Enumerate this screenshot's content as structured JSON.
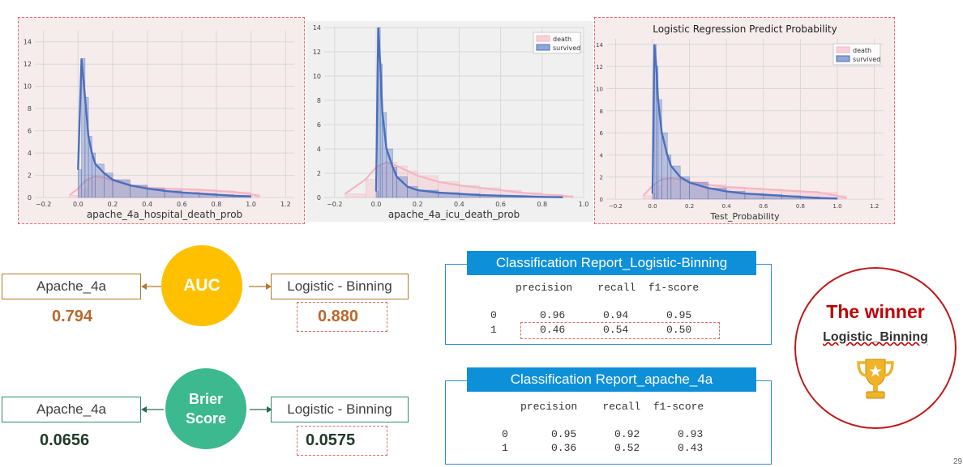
{
  "page_number": "29",
  "charts": [
    {
      "xlabel": "apache_4a_hospital_death_prob",
      "title": "",
      "xticks": [
        "−0.2",
        "0.0",
        "0.2",
        "0.4",
        "0.6",
        "0.8",
        "1.0",
        "1.2"
      ],
      "yticks": [
        "0",
        "2",
        "4",
        "6",
        "8",
        "10",
        "12",
        "14"
      ],
      "legend": []
    },
    {
      "xlabel": "apache_4a_icu_death_prob",
      "title": "",
      "xticks": [
        "−0.2",
        "0.0",
        "0.2",
        "0.4",
        "0.6",
        "0.8",
        "1.0"
      ],
      "yticks": [
        "0",
        "2",
        "4",
        "6",
        "8",
        "10",
        "12",
        "14"
      ],
      "legend": [
        "death",
        "survived"
      ]
    },
    {
      "xlabel": "Test_Probability",
      "title": "Logistic Regression Predict Probability",
      "xticks": [
        "−0.2",
        "0.0",
        "0.2",
        "0.4",
        "0.6",
        "0.8",
        "1.0",
        "1.2"
      ],
      "yticks": [
        "0",
        "2",
        "4",
        "6",
        "8",
        "10",
        "12",
        "14"
      ],
      "legend": [
        "death",
        "survived"
      ]
    }
  ],
  "chart_data": [
    {
      "type": "area",
      "xlabel": "apache_4a_hospital_death_prob",
      "xlim": [
        -0.25,
        1.25
      ],
      "ylim": [
        0,
        15
      ],
      "series": [
        {
          "x": [
            0.0,
            0.02,
            0.04,
            0.06,
            0.08,
            0.1,
            0.15,
            0.2,
            0.3,
            0.4,
            0.5,
            0.6,
            0.7,
            0.8,
            0.9,
            1.0
          ],
          "values": [
            2.5,
            12.5,
            9,
            5.5,
            4,
            3,
            2.2,
            1.6,
            1.1,
            0.8,
            0.6,
            0.45,
            0.35,
            0.25,
            0.15,
            0.1
          ]
        },
        {
          "x": [
            -0.05,
            0.0,
            0.05,
            0.1,
            0.15,
            0.2,
            0.3,
            0.4,
            0.5,
            0.6,
            0.7,
            0.8,
            0.9,
            1.0,
            1.05
          ],
          "values": [
            0.2,
            0.8,
            1.6,
            1.9,
            1.8,
            1.5,
            1.1,
            0.9,
            0.8,
            0.75,
            0.7,
            0.6,
            0.5,
            0.3,
            0.1
          ]
        }
      ]
    },
    {
      "type": "area",
      "xlabel": "apache_4a_icu_death_prob",
      "xlim": [
        -0.25,
        1.0
      ],
      "ylim": [
        0,
        14
      ],
      "series": [
        {
          "name": "survived",
          "x": [
            0.0,
            0.01,
            0.02,
            0.03,
            0.05,
            0.08,
            0.1,
            0.15,
            0.2,
            0.3,
            0.4,
            0.5,
            0.6,
            0.7,
            0.8,
            0.9
          ],
          "values": [
            0.5,
            14,
            11,
            7,
            4,
            2.5,
            1.7,
            0.9,
            0.6,
            0.4,
            0.3,
            0.2,
            0.15,
            0.1,
            0.05,
            0.02
          ]
        },
        {
          "name": "death",
          "x": [
            -0.15,
            -0.05,
            0.0,
            0.05,
            0.1,
            0.15,
            0.2,
            0.3,
            0.4,
            0.5,
            0.6,
            0.7,
            0.8,
            0.9,
            0.95
          ],
          "values": [
            0.3,
            1.5,
            2.5,
            2.9,
            2.6,
            2.2,
            1.8,
            1.3,
            1.0,
            0.8,
            0.6,
            0.4,
            0.25,
            0.15,
            0.05
          ]
        }
      ]
    },
    {
      "type": "area",
      "title": "Logistic Regression Predict Probability",
      "xlabel": "Test_Probability",
      "xlim": [
        -0.25,
        1.25
      ],
      "ylim": [
        0,
        14.5
      ],
      "series": [
        {
          "name": "survived",
          "x": [
            0.0,
            0.01,
            0.02,
            0.03,
            0.05,
            0.08,
            0.1,
            0.15,
            0.2,
            0.3,
            0.4,
            0.5,
            0.6,
            0.7,
            0.8,
            0.9,
            1.0
          ],
          "values": [
            0.5,
            14,
            12,
            9,
            6,
            4,
            3,
            2,
            1.5,
            1.0,
            0.7,
            0.5,
            0.4,
            0.3,
            0.2,
            0.1,
            0.05
          ]
        },
        {
          "name": "death",
          "x": [
            -0.05,
            0.0,
            0.05,
            0.1,
            0.15,
            0.2,
            0.3,
            0.4,
            0.5,
            0.6,
            0.7,
            0.8,
            0.9,
            1.0,
            1.05
          ],
          "values": [
            0.3,
            1.2,
            1.8,
            1.9,
            1.8,
            1.6,
            1.3,
            1.1,
            1.0,
            0.9,
            0.8,
            0.7,
            0.6,
            0.3,
            0.1
          ]
        }
      ]
    }
  ],
  "auc": {
    "label": "AUC",
    "left_label": "Apache_4a",
    "left_value": "0.794",
    "right_label": "Logistic - Binning",
    "right_value": "0.880"
  },
  "brier": {
    "label_line1": "Brier",
    "label_line2": "Score",
    "left_label": "Apache_4a",
    "left_value": "0.0656",
    "right_label": "Logistic - Binning",
    "right_value": "0.0575"
  },
  "report_logistic": {
    "title": "Classification Report_Logistic-Binning",
    "header": "precision    recall  f1-score",
    "rows": [
      {
        "cls": "0",
        "values": "0.96      0.94      0.95"
      },
      {
        "cls": "1",
        "values": "0.46      0.54      0.50"
      }
    ]
  },
  "report_apache": {
    "title": "Classification Report_apache_4a",
    "header": "precision    recall  f1-score",
    "rows": [
      {
        "cls": "0",
        "values": "0.95      0.92      0.93"
      },
      {
        "cls": "1",
        "values": "0.36      0.52      0.43"
      }
    ]
  },
  "winner": {
    "title": "The winner",
    "name": "Logistic_Binning"
  },
  "colors": {
    "auc_circle": "#ffc000",
    "brier_circle": "#3cb98e",
    "survived": "#4a6fbd",
    "death": "#f4b6c2",
    "report_header": "#0e90d8",
    "winner_red": "#c00000",
    "trophy": "#f0b429"
  }
}
